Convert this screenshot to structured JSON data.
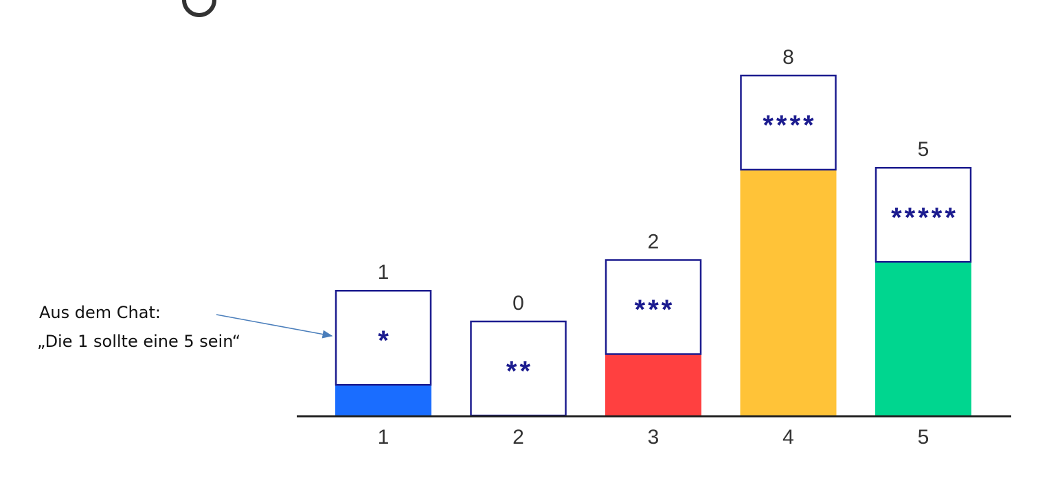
{
  "chart_data": {
    "type": "bar",
    "categories": [
      "1",
      "2",
      "3",
      "4",
      "5"
    ],
    "values": [
      1,
      0,
      2,
      8,
      5
    ],
    "box_labels": [
      "*",
      "**",
      "***",
      "****",
      "*****"
    ],
    "colors": [
      "#1a6dff",
      "#1a6dff",
      "#ff4040",
      "#ffc338",
      "#00d68f"
    ],
    "annotation": [
      "Aus dem Chat:",
      "„Die 1 sollte eine 5 sein“"
    ]
  }
}
